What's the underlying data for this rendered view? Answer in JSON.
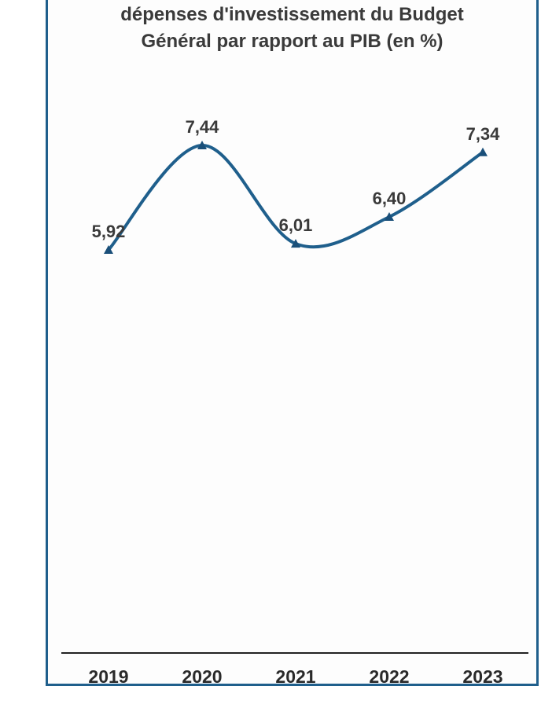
{
  "chart_data": {
    "type": "line",
    "title_lines": [
      "dépenses d'investissement du Budget",
      "Général par rapport au PIB (en %)"
    ],
    "categories": [
      "2019",
      "2020",
      "2021",
      "2022",
      "2023"
    ],
    "values": [
      5.92,
      7.44,
      6.01,
      6.4,
      7.34
    ],
    "value_labels": [
      "5,92",
      "7,44",
      "6,01",
      "6,40",
      "7,34"
    ],
    "xlabel": "",
    "ylabel": "",
    "line_color": "#1f5f8c",
    "marker": "triangle",
    "grid": false,
    "legend": "none"
  }
}
